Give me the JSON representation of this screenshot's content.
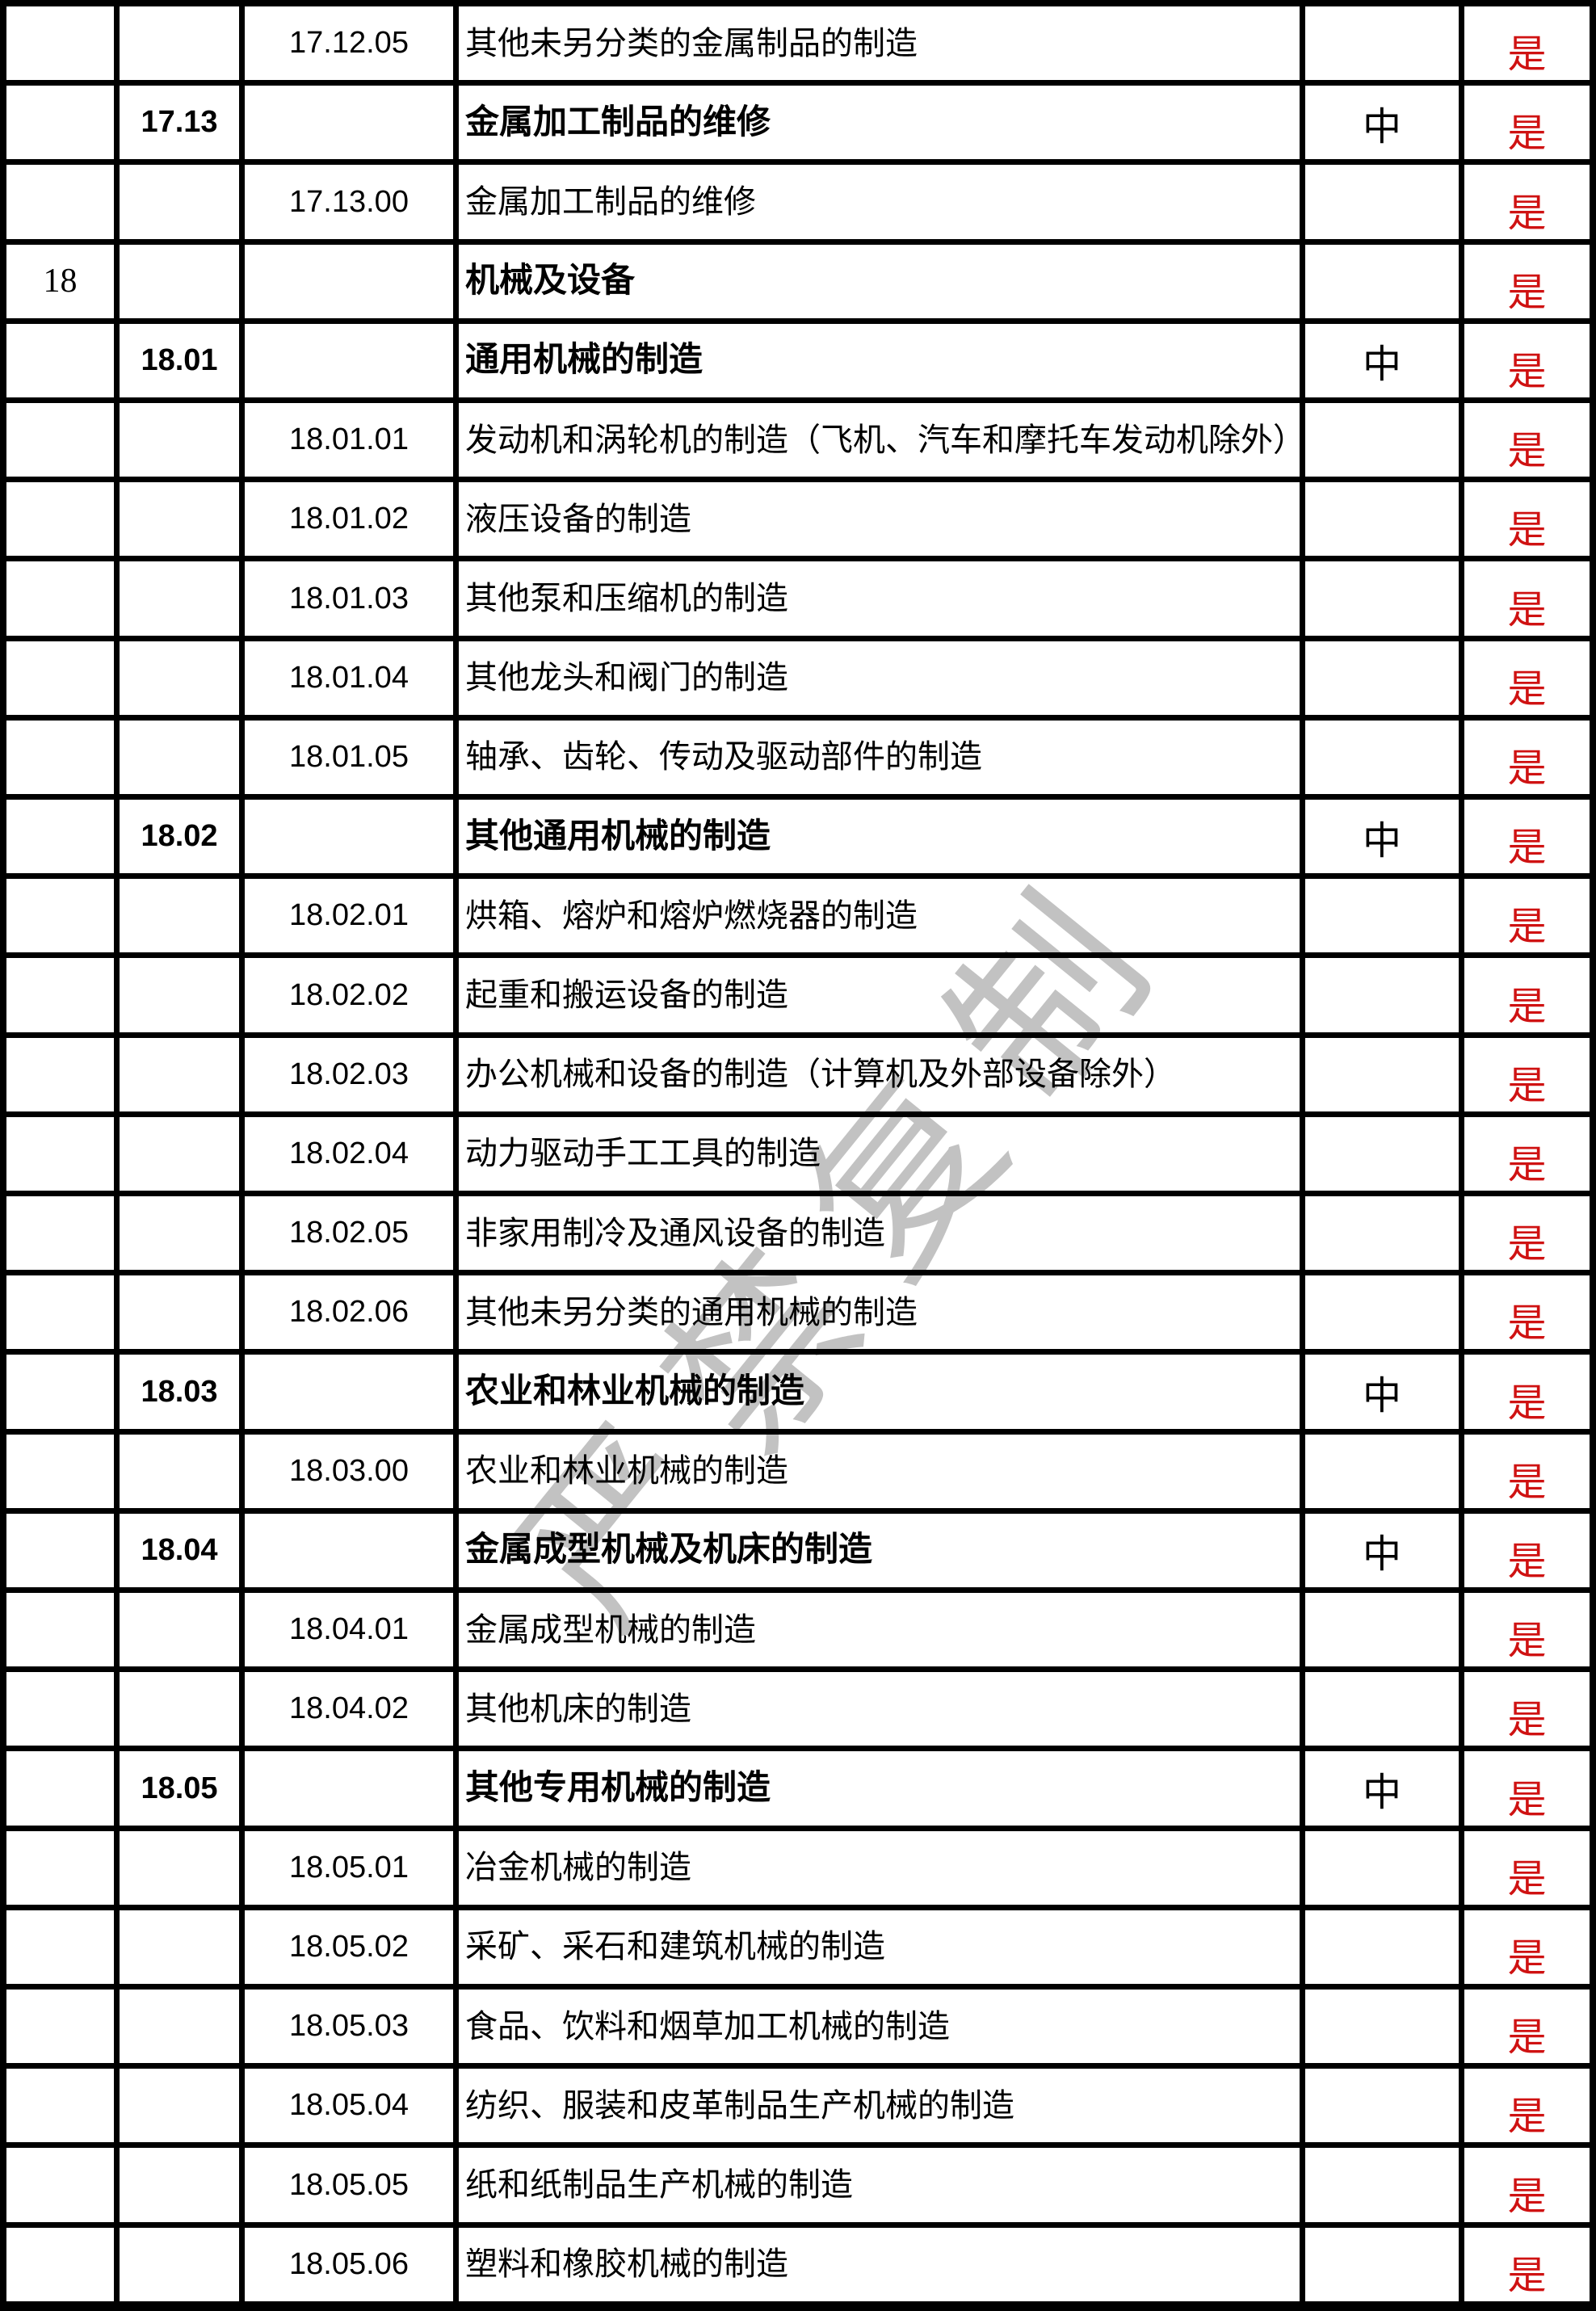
{
  "watermark": {
    "text": "严禁复制",
    "color": "#b3b3b3"
  },
  "colors": {
    "grid": "#000000",
    "background": "#ffffff",
    "text": "#000000",
    "flag_red": "#cf1212"
  },
  "table": {
    "column_names": [
      "level1-code",
      "level2-code",
      "level3-code",
      "description",
      "scale",
      "flag"
    ],
    "scale_label": "中",
    "flag_label": "是",
    "rows": [
      {
        "level1": "",
        "level2": "",
        "level3": "17.12.05",
        "description": "其他未另分类的金属制品的制造",
        "is_header": false,
        "scale": "",
        "flag": "是"
      },
      {
        "level1": "",
        "level2": "17.13",
        "level3": "",
        "description": "金属加工制品的维修",
        "is_header": true,
        "scale": "中",
        "flag": "是"
      },
      {
        "level1": "",
        "level2": "",
        "level3": "17.13.00",
        "description": "金属加工制品的维修",
        "is_header": false,
        "scale": "",
        "flag": "是"
      },
      {
        "level1": "18",
        "level2": "",
        "level3": "",
        "description": "机械及设备",
        "is_header": true,
        "scale": "",
        "flag": "是"
      },
      {
        "level1": "",
        "level2": "18.01",
        "level3": "",
        "description": "通用机械的制造",
        "is_header": true,
        "scale": "中",
        "flag": "是"
      },
      {
        "level1": "",
        "level2": "",
        "level3": "18.01.01",
        "description": "发动机和涡轮机的制造（飞机、汽车和摩托车发动机除外）",
        "is_header": false,
        "scale": "",
        "flag": "是"
      },
      {
        "level1": "",
        "level2": "",
        "level3": "18.01.02",
        "description": "液压设备的制造",
        "is_header": false,
        "scale": "",
        "flag": "是"
      },
      {
        "level1": "",
        "level2": "",
        "level3": "18.01.03",
        "description": "其他泵和压缩机的制造",
        "is_header": false,
        "scale": "",
        "flag": "是"
      },
      {
        "level1": "",
        "level2": "",
        "level3": "18.01.04",
        "description": "其他龙头和阀门的制造",
        "is_header": false,
        "scale": "",
        "flag": "是"
      },
      {
        "level1": "",
        "level2": "",
        "level3": "18.01.05",
        "description": "轴承、齿轮、传动及驱动部件的制造",
        "is_header": false,
        "scale": "",
        "flag": "是"
      },
      {
        "level1": "",
        "level2": "18.02",
        "level3": "",
        "description": "其他通用机械的制造",
        "is_header": true,
        "scale": "中",
        "flag": "是"
      },
      {
        "level1": "",
        "level2": "",
        "level3": "18.02.01",
        "description": "烘箱、熔炉和熔炉燃烧器的制造",
        "is_header": false,
        "scale": "",
        "flag": "是"
      },
      {
        "level1": "",
        "level2": "",
        "level3": "18.02.02",
        "description": "起重和搬运设备的制造",
        "is_header": false,
        "scale": "",
        "flag": "是"
      },
      {
        "level1": "",
        "level2": "",
        "level3": "18.02.03",
        "description": "办公机械和设备的制造（计算机及外部设备除外）",
        "is_header": false,
        "scale": "",
        "flag": "是"
      },
      {
        "level1": "",
        "level2": "",
        "level3": "18.02.04",
        "description": "动力驱动手工工具的制造",
        "is_header": false,
        "scale": "",
        "flag": "是"
      },
      {
        "level1": "",
        "level2": "",
        "level3": "18.02.05",
        "description": "非家用制冷及通风设备的制造",
        "is_header": false,
        "scale": "",
        "flag": "是"
      },
      {
        "level1": "",
        "level2": "",
        "level3": "18.02.06",
        "description": "其他未另分类的通用机械的制造",
        "is_header": false,
        "scale": "",
        "flag": "是"
      },
      {
        "level1": "",
        "level2": "18.03",
        "level3": "",
        "description": "农业和林业机械的制造",
        "is_header": true,
        "scale": "中",
        "flag": "是"
      },
      {
        "level1": "",
        "level2": "",
        "level3": "18.03.00",
        "description": "农业和林业机械的制造",
        "is_header": false,
        "scale": "",
        "flag": "是"
      },
      {
        "level1": "",
        "level2": "18.04",
        "level3": "",
        "description": "金属成型机械及机床的制造",
        "is_header": true,
        "scale": "中",
        "flag": "是"
      },
      {
        "level1": "",
        "level2": "",
        "level3": "18.04.01",
        "description": "金属成型机械的制造",
        "is_header": false,
        "scale": "",
        "flag": "是"
      },
      {
        "level1": "",
        "level2": "",
        "level3": "18.04.02",
        "description": "其他机床的制造",
        "is_header": false,
        "scale": "",
        "flag": "是"
      },
      {
        "level1": "",
        "level2": "18.05",
        "level3": "",
        "description": "其他专用机械的制造",
        "is_header": true,
        "scale": "中",
        "flag": "是"
      },
      {
        "level1": "",
        "level2": "",
        "level3": "18.05.01",
        "description": "冶金机械的制造",
        "is_header": false,
        "scale": "",
        "flag": "是"
      },
      {
        "level1": "",
        "level2": "",
        "level3": "18.05.02",
        "description": "采矿、采石和建筑机械的制造",
        "is_header": false,
        "scale": "",
        "flag": "是"
      },
      {
        "level1": "",
        "level2": "",
        "level3": "18.05.03",
        "description": "食品、饮料和烟草加工机械的制造",
        "is_header": false,
        "scale": "",
        "flag": "是"
      },
      {
        "level1": "",
        "level2": "",
        "level3": "18.05.04",
        "description": "纺织、服装和皮革制品生产机械的制造",
        "is_header": false,
        "scale": "",
        "flag": "是"
      },
      {
        "level1": "",
        "level2": "",
        "level3": "18.05.05",
        "description": "纸和纸制品生产机械的制造",
        "is_header": false,
        "scale": "",
        "flag": "是"
      },
      {
        "level1": "",
        "level2": "",
        "level3": "18.05.06",
        "description": "塑料和橡胶机械的制造",
        "is_header": false,
        "scale": "",
        "flag": "是"
      }
    ]
  }
}
